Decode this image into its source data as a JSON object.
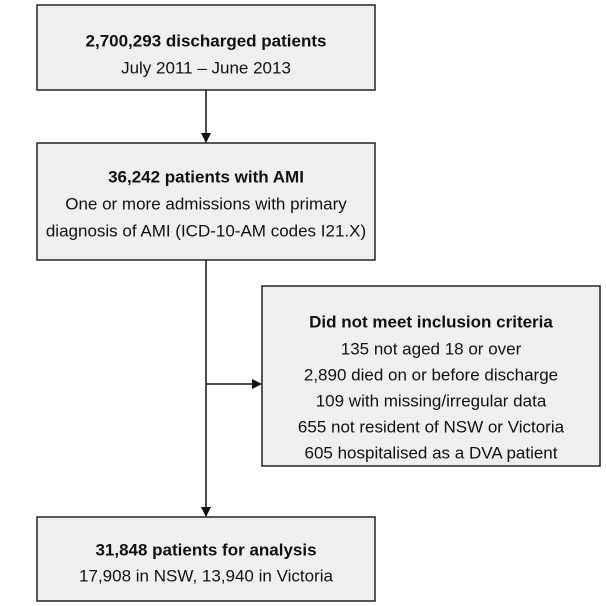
{
  "nodes": [
    {
      "title": "2,700,293 discharged patients",
      "lines": [
        "July 2011 – June 2013"
      ]
    },
    {
      "title": "36,242 patients with AMI",
      "lines": [
        "One or more admissions with primary",
        "diagnosis of AMI (ICD-10-AM codes I21.X)"
      ]
    },
    {
      "title": "Did not meet inclusion criteria",
      "lines": [
        "135 not aged 18 or over",
        "2,890 died on or before discharge",
        "109 with missing/irregular data",
        "655 not resident of NSW or Victoria",
        "605 hospitalised as a DVA patient"
      ]
    },
    {
      "title": "31,848 patients for analysis",
      "lines": [
        "17,908 in NSW, 13,940 in Victoria"
      ]
    }
  ]
}
